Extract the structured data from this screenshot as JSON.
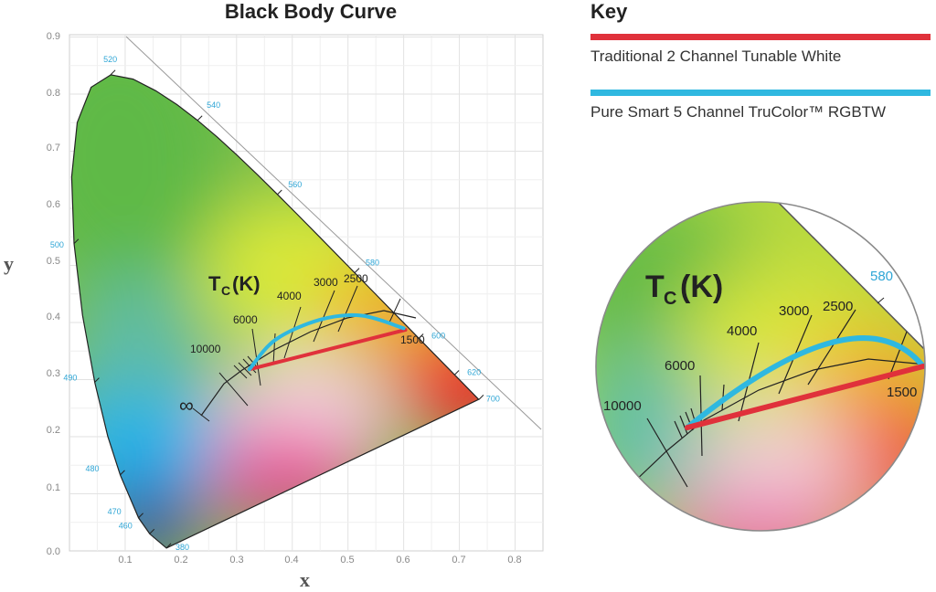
{
  "chart_title": "Black Body Curve",
  "key": {
    "title": "Key",
    "items": [
      {
        "label": "Traditional 2 Channel Tunable White",
        "color": "#e0313b"
      },
      {
        "label": "Pure Smart 5 Channel TruColor™ RGBTW",
        "color": "#2fb8e0"
      }
    ]
  },
  "chart_data": {
    "type": "scatter",
    "xlabel": "x",
    "ylabel": "y",
    "xlim": [
      0,
      0.85
    ],
    "ylim": [
      0,
      0.9
    ],
    "x_ticks": [
      "0.1",
      "0.2",
      "0.3",
      "0.4",
      "0.5",
      "0.6",
      "0.7",
      "0.8"
    ],
    "y_ticks": [
      "0.0",
      "0.1",
      "0.2",
      "0.3",
      "0.4",
      "0.5",
      "0.6",
      "0.7",
      "0.8",
      "0.9"
    ],
    "grid": true,
    "wavelength_labels": [
      {
        "label": "380",
        "x": 0.174,
        "y": 0.005
      },
      {
        "label": "460",
        "x": 0.144,
        "y": 0.03
      },
      {
        "label": "470",
        "x": 0.124,
        "y": 0.058
      },
      {
        "label": "480",
        "x": 0.091,
        "y": 0.133
      },
      {
        "label": "490",
        "x": 0.045,
        "y": 0.295
      },
      {
        "label": "500",
        "x": 0.008,
        "y": 0.538
      },
      {
        "label": "520",
        "x": 0.074,
        "y": 0.834
      },
      {
        "label": "540",
        "x": 0.23,
        "y": 0.754
      },
      {
        "label": "560",
        "x": 0.373,
        "y": 0.624
      },
      {
        "label": "580",
        "x": 0.512,
        "y": 0.487
      },
      {
        "label": "600",
        "x": 0.627,
        "y": 0.372
      },
      {
        "label": "620",
        "x": 0.691,
        "y": 0.308
      },
      {
        "label": "700",
        "x": 0.735,
        "y": 0.265
      }
    ],
    "planckian_title": "T",
    "planckian_subscript": "C",
    "planckian_unit": "(K)",
    "cct_labels": [
      "10000",
      "6000",
      "4000",
      "3000",
      "2500",
      "1500"
    ],
    "infinity_label": "∞",
    "series": [
      {
        "name": "Traditional 2 Channel Tunable White",
        "points": [
          [
            0.323,
            0.318
          ],
          [
            0.603,
            0.387
          ]
        ]
      },
      {
        "name": "Pure Smart 5 Channel TruColor™ RGBTW",
        "points": [
          [
            0.323,
            0.318
          ],
          [
            0.37,
            0.37
          ],
          [
            0.45,
            0.405
          ],
          [
            0.525,
            0.412
          ],
          [
            0.6,
            0.39
          ]
        ]
      }
    ]
  },
  "inset": {
    "planckian_title": "T",
    "planckian_subscript": "C",
    "planckian_unit": "(K)",
    "wavelength_label": "580",
    "cct_labels": [
      "10000",
      "6000",
      "4000",
      "3000",
      "2500",
      "1500"
    ]
  }
}
